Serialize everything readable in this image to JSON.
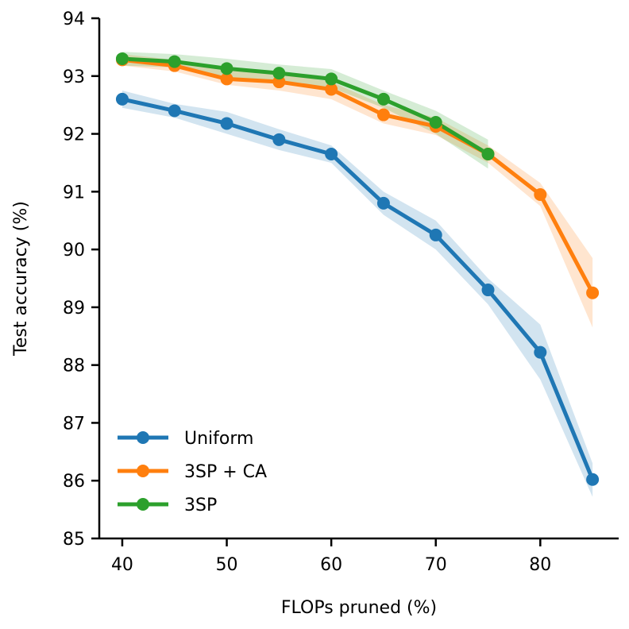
{
  "chart_data": {
    "type": "line",
    "title": "",
    "xlabel": "FLOPs pruned (%)",
    "ylabel": "Test accuracy (%)",
    "xlim": [
      37.8,
      87.5
    ],
    "ylim": [
      85,
      94
    ],
    "xticks": [
      40,
      50,
      60,
      70,
      80
    ],
    "yticks": [
      85,
      86,
      87,
      88,
      89,
      90,
      91,
      92,
      93,
      94
    ],
    "grid": false,
    "legend_position": "lower-left",
    "shaded_bands": true,
    "series": [
      {
        "name": "Uniform",
        "color": "#1f77b4",
        "x": [
          40,
          45,
          50,
          55,
          60,
          65,
          70,
          75,
          80,
          85
        ],
        "y": [
          92.6,
          92.4,
          92.18,
          91.9,
          91.65,
          90.8,
          90.25,
          89.3,
          88.22,
          86.02
        ],
        "band_lower": [
          92.45,
          92.28,
          92.0,
          91.72,
          91.5,
          90.6,
          90.0,
          89.05,
          87.75,
          85.72
        ],
        "band_upper": [
          92.75,
          92.52,
          92.38,
          92.08,
          91.8,
          91.0,
          90.5,
          89.5,
          88.7,
          86.3
        ]
      },
      {
        "name": "3SP + CA",
        "color": "#ff7f0e",
        "x": [
          40,
          45,
          50,
          55,
          60,
          65,
          70,
          75,
          80,
          85
        ],
        "y": [
          93.28,
          93.18,
          92.95,
          92.9,
          92.77,
          92.33,
          92.13,
          91.65,
          90.95,
          89.25
        ],
        "band_lower": [
          93.18,
          93.08,
          92.85,
          92.75,
          92.6,
          92.18,
          91.98,
          91.5,
          90.75,
          88.65
        ],
        "band_upper": [
          93.38,
          93.28,
          93.1,
          93.05,
          92.9,
          92.5,
          92.28,
          91.8,
          91.15,
          89.85
        ]
      },
      {
        "name": "3SP",
        "color": "#2ca02c",
        "x": [
          40,
          45,
          50,
          55,
          60,
          65,
          70,
          75
        ],
        "y": [
          93.3,
          93.25,
          93.13,
          93.05,
          92.95,
          92.6,
          92.2,
          91.65
        ],
        "band_lower": [
          93.18,
          93.15,
          92.98,
          92.9,
          92.8,
          92.45,
          92.0,
          91.4
        ],
        "band_upper": [
          93.42,
          93.38,
          93.3,
          93.2,
          93.12,
          92.75,
          92.4,
          91.9
        ]
      }
    ]
  }
}
